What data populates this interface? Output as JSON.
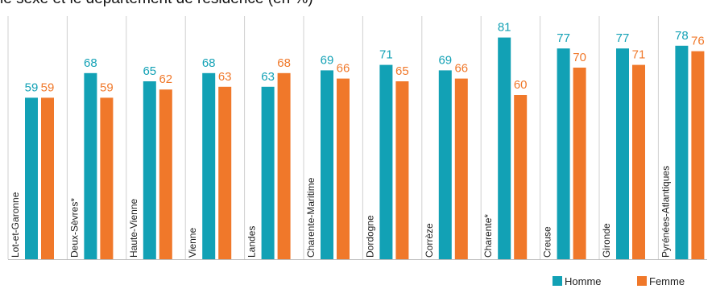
{
  "chart_data": {
    "type": "bar",
    "title": "le sexe et le département de résidence (en %)",
    "categories": [
      "Lot-et-Garonne",
      "Deux-Sèvres*",
      "Haute-Vienne",
      "Vienne",
      "Landes",
      "Charente-Maritime",
      "Dordogne",
      "Corrèze",
      "Charente*",
      "Creuse",
      "Gironde",
      "Pyrénées-Atlantiques"
    ],
    "series": [
      {
        "name": "Homme",
        "color": "#12A1B5",
        "values": [
          59,
          68,
          65,
          68,
          63,
          69,
          71,
          69,
          81,
          77,
          77,
          78
        ]
      },
      {
        "name": "Femme",
        "color": "#F0782A",
        "values": [
          59,
          59,
          62,
          63,
          68,
          66,
          65,
          66,
          60,
          70,
          71,
          76
        ]
      }
    ],
    "legend_position": "bottom-right",
    "grid": false
  }
}
